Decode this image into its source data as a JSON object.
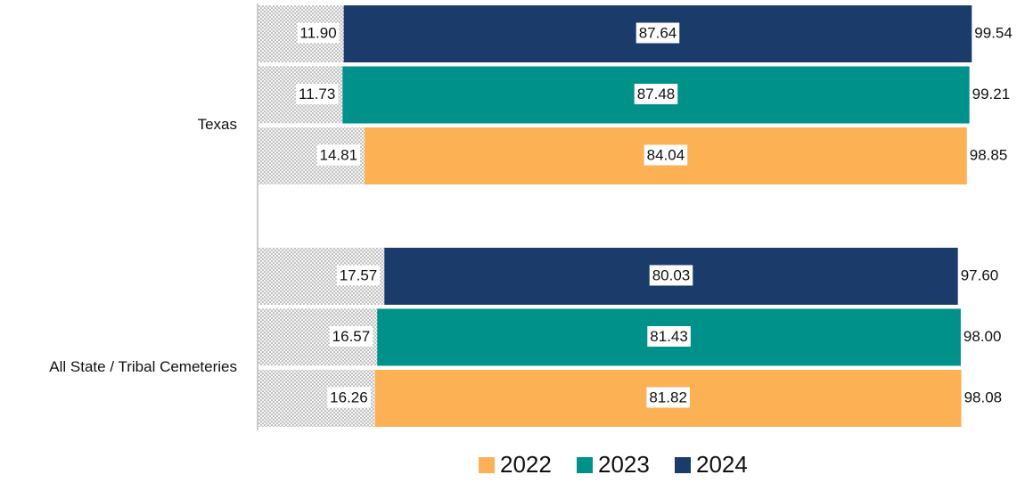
{
  "chart_data": {
    "type": "stacked-bar-horizontal",
    "categories": [
      "Texas",
      "All State / Tribal Cemeteries"
    ],
    "series": [
      {
        "name": "2022",
        "color": "#fbb154",
        "base": [
          14.81,
          16.26
        ],
        "values": [
          84.04,
          81.82
        ],
        "totals": [
          98.85,
          98.08
        ],
        "total_labels": [
          "98.85",
          "98.08"
        ]
      },
      {
        "name": "2023",
        "color": "#00918a",
        "base": [
          11.73,
          16.57
        ],
        "values": [
          87.48,
          81.43
        ],
        "totals": [
          99.21,
          98.0
        ],
        "total_labels": [
          "99.21",
          "98.00"
        ]
      },
      {
        "name": "2024",
        "color": "#1b3b6b",
        "base": [
          11.9,
          17.57
        ],
        "values": [
          87.64,
          80.03
        ],
        "totals": [
          99.54,
          97.6
        ],
        "base_labels": [
          "11.90",
          "17.57"
        ],
        "total_labels": [
          "99.54",
          "97.60"
        ]
      }
    ]
  }
}
